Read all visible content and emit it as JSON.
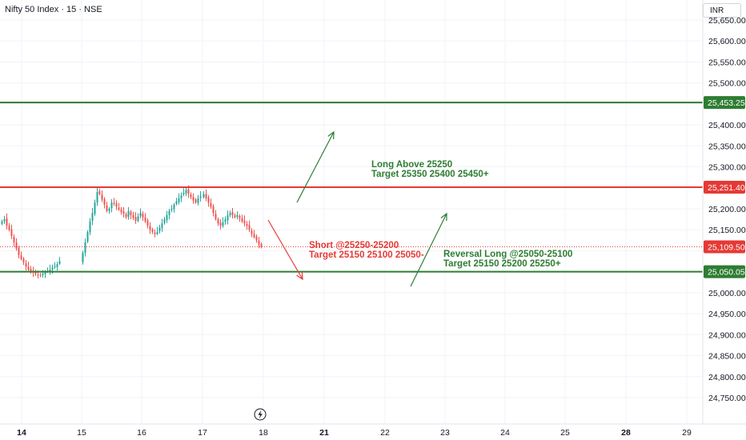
{
  "header": {
    "symbol_title": "Nifty 50 Index · 15 · NSE",
    "currency": "INR"
  },
  "colors": {
    "up": "#26a69a",
    "down": "#ef5350",
    "support_line": "#2e7d32",
    "resistance_line": "#e53935",
    "target_line": "#2e7d32",
    "last_price": "#e53935"
  },
  "annotations": {
    "long_breakout": {
      "line1": "Long  Above 25250",
      "line2": "Target 25350 25400 25450+"
    },
    "short": {
      "line1": "Short @25250-25200",
      "line2": "Target 25150 25100 25050-"
    },
    "reversal_long": {
      "line1": "Reversal Long  @25050-25100",
      "line2": "Target 25150 25200 25250+"
    }
  },
  "icons": {
    "lightning": "lightning-icon"
  },
  "chart_data": {
    "type": "candlestick",
    "title": "Nifty 50 Index · 15 · NSE",
    "currency": "INR",
    "y_axis": {
      "ticks": [
        24750,
        24800,
        24850,
        24900,
        24950,
        25000,
        25050,
        25100,
        25150,
        25200,
        25250,
        25300,
        25350,
        25400,
        25450,
        25500,
        25550,
        25600,
        25650
      ],
      "tick_labels": [
        "24,750.00",
        "24,800.00",
        "24,850.00",
        "24,900.00",
        "24,950.00",
        "25,000.00",
        "25,050.00",
        "25,100.00",
        "25,150.00",
        "25,200.00",
        "25,250.00",
        "25,300.00",
        "25,350.00",
        "25,400.00",
        "25,450.00",
        "25,500.00",
        "25,550.00",
        "25,600.00",
        "25,650.00"
      ],
      "range": [
        24740,
        25710
      ]
    },
    "x_axis": {
      "tick_labels": [
        "14",
        "15",
        "16",
        "17",
        "18",
        "21",
        "22",
        "23",
        "24",
        "25",
        "28",
        "29"
      ],
      "bold_labels": [
        "14",
        "21",
        "28"
      ]
    },
    "horizontal_lines": [
      {
        "value": 25453.25,
        "label": "25,453.25",
        "kind": "target"
      },
      {
        "value": 25251.4,
        "label": "25,251.40",
        "kind": "resistance"
      },
      {
        "value": 25050.05,
        "label": "25,050.05",
        "kind": "support"
      }
    ],
    "last_price": {
      "value": 25109.5,
      "label": "25,109.50"
    },
    "days": [
      "14",
      "15",
      "16",
      "17"
    ],
    "candles_per_day": 25,
    "last_day_candles": 20,
    "close_path": [
      25170,
      25175,
      25160,
      25150,
      25135,
      25120,
      25105,
      25090,
      25080,
      25072,
      25062,
      25055,
      25052,
      25048,
      25045,
      25042,
      25040,
      25045,
      25050,
      25052,
      25055,
      25060,
      25062,
      25068,
      25075,
      25095,
      25120,
      25145,
      25170,
      25190,
      25215,
      25240,
      25235,
      25222,
      25210,
      25195,
      25200,
      25215,
      25212,
      25205,
      25198,
      25192,
      25188,
      25180,
      25195,
      25185,
      25178,
      25172,
      25182,
      25190,
      25180,
      25170,
      25160,
      25150,
      25145,
      25140,
      25145,
      25155,
      25165,
      25175,
      25185,
      25195,
      25200,
      25210,
      25218,
      25225,
      25232,
      25238,
      25245,
      25236,
      25228,
      25220,
      25215,
      25225,
      25230,
      25235,
      25225,
      25215,
      25205,
      25190,
      25175,
      25165,
      25160,
      25168,
      25175,
      25185,
      25190,
      25185,
      25180,
      25185,
      25178,
      25170,
      25165,
      25160,
      25150,
      25140,
      25132,
      25125,
      25115,
      25109.5
    ]
  }
}
